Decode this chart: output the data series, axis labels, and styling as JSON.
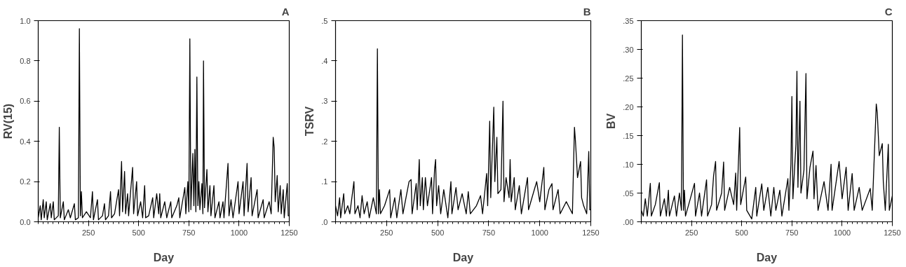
{
  "chart_data": [
    {
      "type": "line",
      "title": "A",
      "xlabel": "Day",
      "ylabel": "RV(15)",
      "xlim": [
        0,
        1250
      ],
      "xticks": [
        250,
        500,
        750,
        1000,
        1250
      ],
      "ylim": [
        0,
        1.0
      ],
      "yticks": [
        {
          "value": 0,
          "label": "0.0"
        },
        {
          "value": 0.2,
          "label": "0.2"
        },
        {
          "value": 0.4,
          "label": "0.4"
        },
        {
          "value": 0.6,
          "label": "0.6"
        },
        {
          "value": 0.8,
          "label": "0.8"
        },
        {
          "value": 1.0,
          "label": "1.0"
        }
      ],
      "x": [
        0,
        10,
        15,
        25,
        30,
        40,
        45,
        60,
        65,
        75,
        80,
        100,
        105,
        110,
        125,
        130,
        150,
        160,
        180,
        185,
        200,
        205,
        210,
        215,
        220,
        240,
        260,
        270,
        275,
        295,
        300,
        320,
        330,
        335,
        350,
        360,
        365,
        380,
        400,
        405,
        415,
        420,
        430,
        435,
        445,
        450,
        470,
        475,
        490,
        495,
        510,
        520,
        530,
        535,
        550,
        570,
        575,
        590,
        600,
        605,
        610,
        630,
        640,
        660,
        665,
        690,
        700,
        705,
        730,
        735,
        745,
        750,
        755,
        760,
        770,
        775,
        780,
        785,
        790,
        795,
        800,
        805,
        815,
        820,
        823,
        828,
        840,
        845,
        855,
        860,
        875,
        880,
        900,
        905,
        920,
        925,
        945,
        950,
        960,
        970,
        995,
        1000,
        1020,
        1025,
        1040,
        1045,
        1060,
        1065,
        1090,
        1095,
        1120,
        1125,
        1150,
        1160,
        1170,
        1175,
        1180,
        1190,
        1195,
        1205,
        1210,
        1220,
        1225,
        1240,
        1245,
        1250
      ],
      "series": [
        {
          "color": "#000000",
          "values": [
            0.02,
            0.08,
            0.01,
            0.11,
            0.02,
            0.1,
            0.01,
            0.09,
            0.02,
            0.1,
            0.01,
            0.03,
            0.47,
            0.02,
            0.1,
            0.01,
            0.06,
            0.02,
            0.09,
            0.01,
            0.02,
            0.96,
            0.03,
            0.15,
            0.02,
            0.05,
            0.02,
            0.15,
            0.01,
            0.11,
            0.01,
            0.03,
            0.09,
            0.01,
            0.03,
            0.15,
            0.02,
            0.04,
            0.16,
            0.03,
            0.3,
            0.05,
            0.25,
            0.04,
            0.14,
            0.03,
            0.27,
            0.04,
            0.2,
            0.03,
            0.1,
            0.02,
            0.18,
            0.02,
            0.03,
            0.12,
            0.02,
            0.14,
            0.04,
            0.14,
            0.02,
            0.1,
            0.02,
            0.1,
            0.02,
            0.08,
            0.12,
            0.02,
            0.17,
            0.04,
            0.2,
            0.05,
            0.91,
            0.06,
            0.34,
            0.08,
            0.36,
            0.05,
            0.72,
            0.08,
            0.2,
            0.06,
            0.19,
            0.04,
            0.8,
            0.07,
            0.26,
            0.05,
            0.18,
            0.03,
            0.18,
            0.02,
            0.1,
            0.02,
            0.1,
            0.02,
            0.29,
            0.03,
            0.11,
            0.02,
            0.2,
            0.04,
            0.2,
            0.03,
            0.29,
            0.05,
            0.22,
            0.03,
            0.16,
            0.02,
            0.11,
            0.02,
            0.1,
            0.04,
            0.42,
            0.37,
            0.1,
            0.23,
            0.05,
            0.18,
            0.04,
            0.16,
            0.02,
            0.19,
            0.03,
            0.03
          ]
        }
      ]
    },
    {
      "type": "line",
      "title": "B",
      "xlabel": "Day",
      "ylabel": "TSRV",
      "xlim": [
        0,
        1250
      ],
      "xticks": [
        250,
        500,
        750,
        1000,
        1250
      ],
      "ylim": [
        0,
        0.5
      ],
      "yticks": [
        {
          "value": 0,
          "label": ".0"
        },
        {
          "value": 0.1,
          "label": ".1"
        },
        {
          "value": 0.2,
          "label": ".2"
        },
        {
          "value": 0.3,
          "label": ".3"
        },
        {
          "value": 0.4,
          "label": ".4"
        },
        {
          "value": 0.5,
          "label": ".5"
        }
      ],
      "x": [
        0,
        10,
        20,
        25,
        40,
        45,
        60,
        70,
        90,
        95,
        110,
        120,
        130,
        140,
        155,
        165,
        185,
        200,
        205,
        210,
        215,
        220,
        240,
        265,
        270,
        290,
        300,
        320,
        330,
        360,
        370,
        375,
        395,
        400,
        410,
        415,
        425,
        430,
        440,
        450,
        470,
        475,
        485,
        490,
        495,
        505,
        515,
        530,
        550,
        565,
        570,
        590,
        600,
        620,
        640,
        650,
        660,
        690,
        710,
        720,
        740,
        745,
        755,
        760,
        775,
        780,
        790,
        795,
        810,
        820,
        825,
        835,
        850,
        855,
        860,
        875,
        880,
        900,
        910,
        940,
        945,
        985,
        1000,
        1020,
        1025,
        1045,
        1060,
        1065,
        1090,
        1100,
        1130,
        1160,
        1170,
        1175,
        1185,
        1200,
        1205,
        1215,
        1230,
        1240,
        1245,
        1250
      ],
      "series": [
        {
          "color": "#000000",
          "values": [
            0.04,
            0.015,
            0.06,
            0.01,
            0.07,
            0.02,
            0.04,
            0.02,
            0.1,
            0.02,
            0.04,
            0.01,
            0.065,
            0.02,
            0.05,
            0.01,
            0.06,
            0.02,
            0.43,
            0.02,
            0.08,
            0.02,
            0.04,
            0.08,
            0.01,
            0.06,
            0.01,
            0.08,
            0.02,
            0.1,
            0.105,
            0.02,
            0.095,
            0.03,
            0.155,
            0.04,
            0.11,
            0.03,
            0.11,
            0.04,
            0.11,
            0.02,
            0.13,
            0.155,
            0.04,
            0.09,
            0.02,
            0.08,
            0.01,
            0.1,
            0.02,
            0.085,
            0.03,
            0.07,
            0.02,
            0.075,
            0.02,
            0.04,
            0.065,
            0.02,
            0.12,
            0.04,
            0.25,
            0.06,
            0.285,
            0.1,
            0.21,
            0.07,
            0.08,
            0.3,
            0.05,
            0.11,
            0.06,
            0.155,
            0.05,
            0.11,
            0.03,
            0.09,
            0.02,
            0.11,
            0.03,
            0.1,
            0.05,
            0.135,
            0.03,
            0.08,
            0.095,
            0.03,
            0.08,
            0.02,
            0.05,
            0.02,
            0.235,
            0.2,
            0.11,
            0.15,
            0.06,
            0.04,
            0.02,
            0.175,
            0.03,
            0.03
          ]
        }
      ]
    },
    {
      "type": "line",
      "title": "C",
      "xlabel": "Day",
      "ylabel": "BV",
      "xlim": [
        0,
        1250
      ],
      "xticks": [
        250,
        500,
        750,
        1000,
        1250
      ],
      "ylim": [
        0,
        0.35
      ],
      "yticks": [
        {
          "value": 0,
          "label": ".00"
        },
        {
          "value": 0.05,
          "label": ".05"
        },
        {
          "value": 0.1,
          "label": ".10"
        },
        {
          "value": 0.15,
          "label": ".15"
        },
        {
          "value": 0.2,
          "label": ".20"
        },
        {
          "value": 0.25,
          "label": ".25"
        },
        {
          "value": 0.3,
          "label": ".30"
        },
        {
          "value": 0.35,
          "label": ".35"
        }
      ],
      "x": [
        0,
        10,
        20,
        30,
        45,
        50,
        70,
        90,
        95,
        115,
        125,
        135,
        140,
        165,
        175,
        190,
        200,
        205,
        210,
        215,
        220,
        240,
        265,
        270,
        290,
        300,
        325,
        330,
        350,
        360,
        370,
        375,
        400,
        410,
        415,
        440,
        460,
        470,
        475,
        490,
        495,
        520,
        525,
        550,
        570,
        575,
        600,
        610,
        630,
        645,
        660,
        670,
        690,
        700,
        730,
        735,
        745,
        750,
        755,
        770,
        775,
        780,
        790,
        795,
        810,
        820,
        825,
        840,
        855,
        860,
        870,
        880,
        910,
        930,
        945,
        950,
        985,
        1000,
        1020,
        1030,
        1050,
        1060,
        1085,
        1100,
        1140,
        1150,
        1170,
        1175,
        1185,
        1200,
        1205,
        1215,
        1230,
        1235,
        1250
      ],
      "series": [
        {
          "color": "#000000",
          "values": [
            0.02,
            0.01,
            0.04,
            0.01,
            0.067,
            0.01,
            0.03,
            0.068,
            0.01,
            0.04,
            0.01,
            0.055,
            0.01,
            0.045,
            0.01,
            0.05,
            0.02,
            0.325,
            0.02,
            0.055,
            0.01,
            0.035,
            0.067,
            0.01,
            0.05,
            0.01,
            0.073,
            0.01,
            0.03,
            0.08,
            0.105,
            0.02,
            0.05,
            0.104,
            0.02,
            0.06,
            0.03,
            0.085,
            0.02,
            0.164,
            0.03,
            0.078,
            0.02,
            0.005,
            0.06,
            0.01,
            0.066,
            0.02,
            0.06,
            0.01,
            0.06,
            0.02,
            0.055,
            0.01,
            0.075,
            0.02,
            0.1,
            0.218,
            0.04,
            0.135,
            0.262,
            0.06,
            0.21,
            0.05,
            0.09,
            0.258,
            0.04,
            0.095,
            0.123,
            0.04,
            0.098,
            0.02,
            0.07,
            0.02,
            0.1,
            0.02,
            0.105,
            0.04,
            0.095,
            0.02,
            0.084,
            0.02,
            0.06,
            0.02,
            0.058,
            0.02,
            0.205,
            0.19,
            0.115,
            0.136,
            0.07,
            0.02,
            0.135,
            0.02,
            0.045
          ]
        }
      ]
    }
  ]
}
